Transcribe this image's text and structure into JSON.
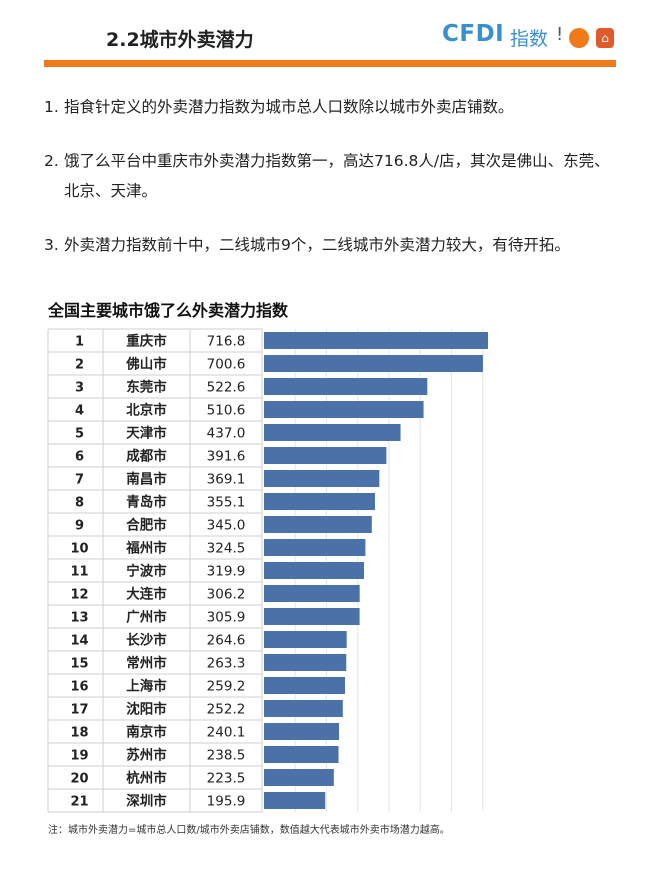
{
  "header": {
    "title": "2.2城市外卖潜力",
    "logo_text": "CFDI",
    "logo_suffix": "指数",
    "accent_color": "#f07a1a"
  },
  "notes": [
    {
      "num": "1.",
      "text": "指食针定义的外卖潜力指数为城市总人口数除以城市外卖店铺数。"
    },
    {
      "num": "2.",
      "text": "饿了么平台中重庆市外卖潜力指数第一，高达716.8人/店，其次是佛山、东莞、北京、天津。"
    },
    {
      "num": "3.",
      "text": "外卖潜力指数前十中，二线城市9个，二线城市外卖潜力较大，有待开拓。"
    }
  ],
  "chart_data": {
    "type": "bar",
    "title": "全国主要城市饿了么外卖潜力指数",
    "orientation": "horizontal",
    "bar_color": "#4a72a8",
    "xlim": [
      0,
      800
    ],
    "ranks": [
      "1",
      "2",
      "3",
      "4",
      "5",
      "6",
      "7",
      "8",
      "9",
      "10",
      "11",
      "12",
      "13",
      "14",
      "15",
      "16",
      "17",
      "18",
      "19",
      "20",
      "21"
    ],
    "categories": [
      "重庆市",
      "佛山市",
      "东莞市",
      "北京市",
      "天津市",
      "成都市",
      "南昌市",
      "青岛市",
      "合肥市",
      "福州市",
      "宁波市",
      "大连市",
      "广州市",
      "长沙市",
      "常州市",
      "上海市",
      "沈阳市",
      "南京市",
      "苏州市",
      "杭州市",
      "深圳市"
    ],
    "values": [
      716.8,
      700.6,
      522.6,
      510.6,
      437.0,
      391.6,
      369.1,
      355.1,
      345.0,
      324.5,
      319.9,
      306.2,
      305.9,
      264.6,
      263.3,
      259.2,
      252.2,
      240.1,
      238.5,
      223.5,
      195.9
    ],
    "value_labels": [
      "716.8",
      "700.6",
      "522.6",
      "510.6",
      "437.0",
      "391.6",
      "369.1",
      "355.1",
      "345.0",
      "324.5",
      "319.9",
      "306.2",
      "305.9",
      "264.6",
      "263.3",
      "259.2",
      "252.2",
      "240.1",
      "238.5",
      "223.5",
      "195.9"
    ]
  },
  "footnote": "注：城市外卖潜力=城市总人口数/城市外卖店铺数，数值越大代表城市外卖市场潜力越高。"
}
